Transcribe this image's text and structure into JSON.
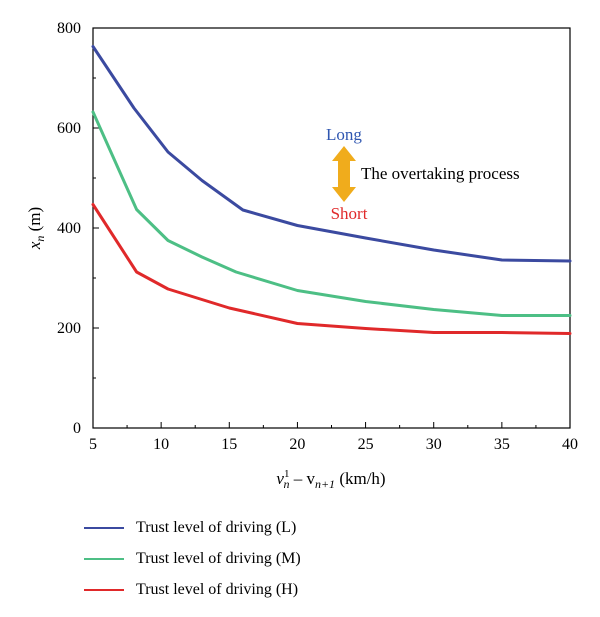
{
  "chart_data": {
    "type": "line",
    "xlabel_main": "v",
    "xlabel_sup": "1",
    "xlabel_sub1": "n",
    "xlabel_mid": " – v",
    "xlabel_sub2": "n+1",
    "xlabel_unit": " (km/h)",
    "ylabel_main": "x",
    "ylabel_sub": "n",
    "ylabel_unit": " (m)",
    "xlim": [
      5,
      40
    ],
    "ylim": [
      0,
      800
    ],
    "xticks": [
      5,
      10,
      15,
      20,
      25,
      30,
      35,
      40
    ],
    "yticks": [
      0,
      200,
      400,
      600,
      800
    ],
    "series": [
      {
        "name": "Trust level of driving (L)",
        "color": "#3b4aa0",
        "x": [
          5,
          8,
          10.5,
          13,
          16,
          20,
          25,
          30,
          35,
          40
        ],
        "y": [
          763,
          640,
          552,
          495,
          436,
          405,
          380,
          356,
          336,
          334
        ]
      },
      {
        "name": "Trust level of driving (M)",
        "color": "#4dbf85",
        "x": [
          5,
          8.2,
          10.5,
          13,
          15.5,
          20,
          25,
          30,
          35,
          40
        ],
        "y": [
          632,
          437,
          375,
          342,
          312,
          275,
          253,
          237,
          225,
          225
        ]
      },
      {
        "name": "Trust level of driving (H)",
        "color": "#e0292a",
        "x": [
          5,
          8.2,
          10.5,
          15,
          20,
          25,
          30,
          35,
          40
        ],
        "y": [
          447,
          312,
          278,
          240,
          209,
          199,
          191,
          191,
          189
        ]
      }
    ],
    "annotations": {
      "long": "Long",
      "short": "Short",
      "process": "The overtaking process",
      "long_color": "#2f56b0",
      "short_color": "#e0292a",
      "arrow_color": "#f0ac1c"
    },
    "legend_position": "bottom",
    "grid": false
  }
}
